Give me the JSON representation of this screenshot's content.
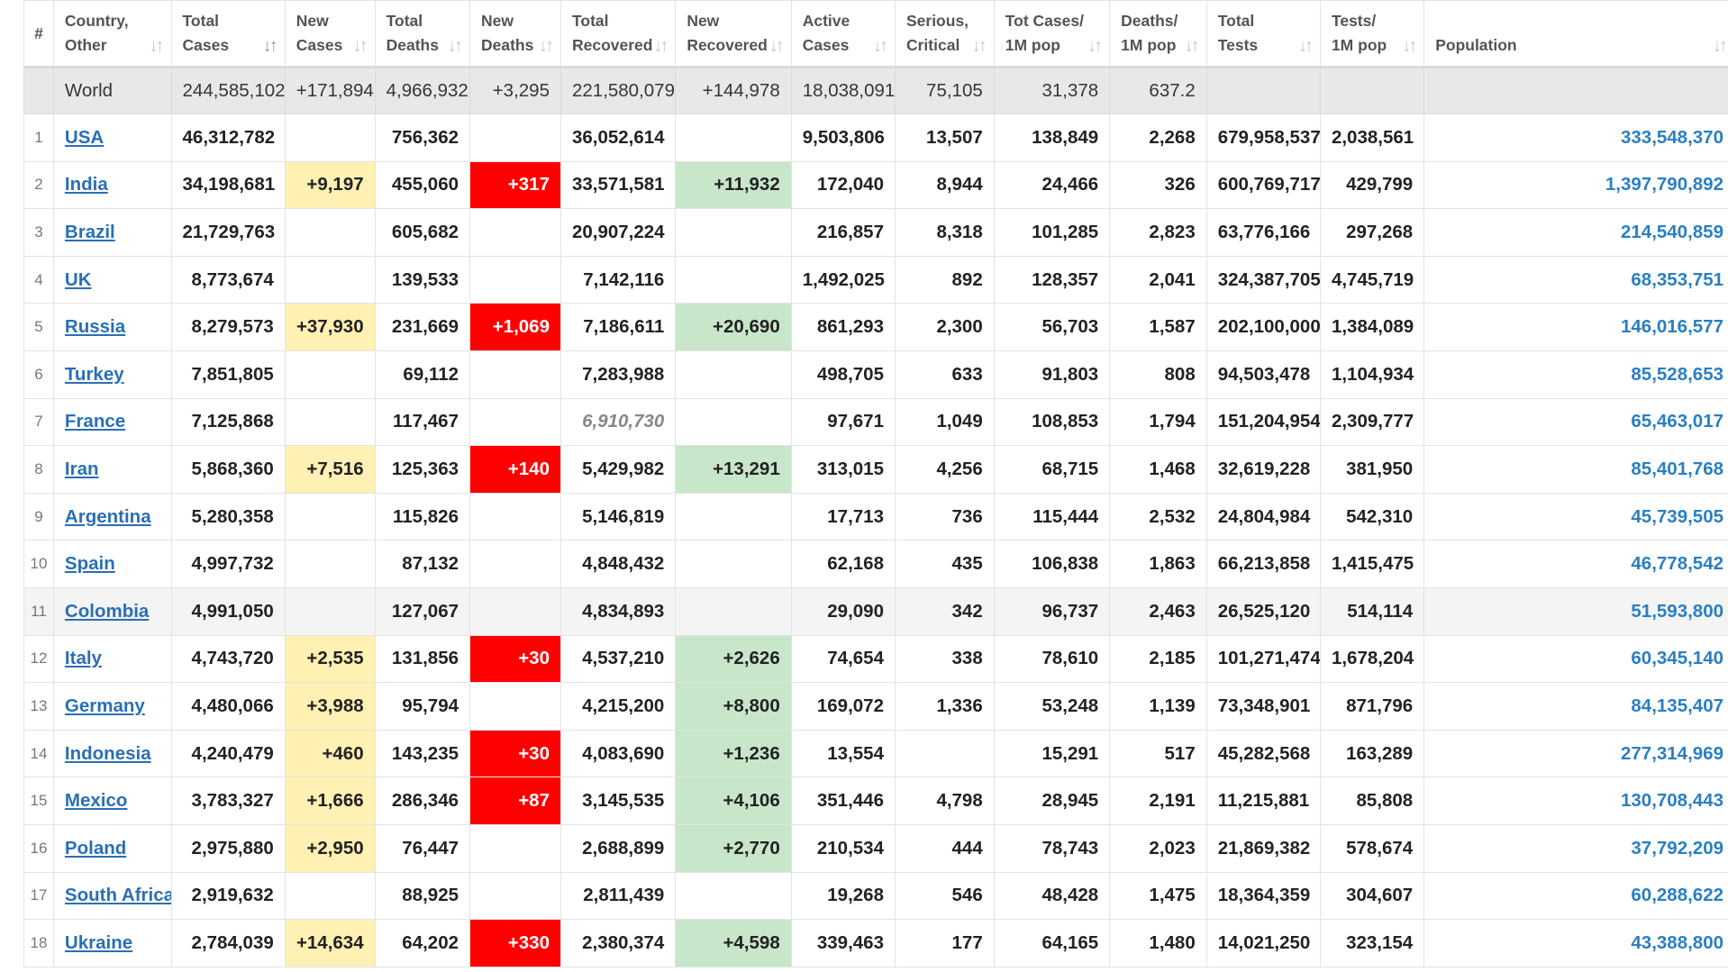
{
  "headers": [
    {
      "key": "num",
      "l1": "#",
      "l2": ""
    },
    {
      "key": "country",
      "l1": "Country,",
      "l2": "Other"
    },
    {
      "key": "total_cases",
      "l1": "Total",
      "l2": "Cases"
    },
    {
      "key": "new_cases",
      "l1": "New",
      "l2": "Cases"
    },
    {
      "key": "total_deaths",
      "l1": "Total",
      "l2": "Deaths"
    },
    {
      "key": "new_deaths",
      "l1": "New",
      "l2": "Deaths"
    },
    {
      "key": "total_recovered",
      "l1": "Total",
      "l2": "Recovered"
    },
    {
      "key": "new_recovered",
      "l1": "New",
      "l2": "Recovered"
    },
    {
      "key": "active",
      "l1": "Active",
      "l2": "Cases"
    },
    {
      "key": "serious",
      "l1": "Serious,",
      "l2": "Critical"
    },
    {
      "key": "cases_1m",
      "l1": "Tot Cases/",
      "l2": "1M pop"
    },
    {
      "key": "deaths_1m",
      "l1": "Deaths/",
      "l2": "1M pop"
    },
    {
      "key": "total_tests",
      "l1": "Total",
      "l2": "Tests"
    },
    {
      "key": "tests_1m",
      "l1": "Tests/",
      "l2": "1M pop"
    },
    {
      "key": "population",
      "l1": "",
      "l2": "Population"
    }
  ],
  "sort_icon": "sort-arrows-icon",
  "active_sort_column": "total_cases",
  "world": {
    "country": "World",
    "total_cases": "244,585,102",
    "new_cases": "+171,894",
    "total_deaths": "4,966,932",
    "new_deaths": "+3,295",
    "total_recovered": "221,580,079",
    "new_recovered": "+144,978",
    "active": "18,038,091",
    "serious": "75,105",
    "cases_1m": "31,378",
    "deaths_1m": "637.2",
    "total_tests": "",
    "tests_1m": "",
    "population": ""
  },
  "rows": [
    {
      "num": "1",
      "country": "USA",
      "total_cases": "46,312,782",
      "new_cases": "",
      "total_deaths": "756,362",
      "new_deaths": "",
      "total_recovered": "36,052,614",
      "new_recovered": "",
      "active": "9,503,806",
      "serious": "13,507",
      "cases_1m": "138,849",
      "deaths_1m": "2,268",
      "total_tests": "679,958,537",
      "tests_1m": "2,038,561",
      "population": "333,548,370"
    },
    {
      "num": "2",
      "country": "India",
      "total_cases": "34,198,681",
      "new_cases": "+9,197",
      "total_deaths": "455,060",
      "new_deaths": "+317",
      "total_recovered": "33,571,581",
      "new_recovered": "+11,932",
      "active": "172,040",
      "serious": "8,944",
      "cases_1m": "24,466",
      "deaths_1m": "326",
      "total_tests": "600,769,717",
      "tests_1m": "429,799",
      "population": "1,397,790,892"
    },
    {
      "num": "3",
      "country": "Brazil",
      "total_cases": "21,729,763",
      "new_cases": "",
      "total_deaths": "605,682",
      "new_deaths": "",
      "total_recovered": "20,907,224",
      "new_recovered": "",
      "active": "216,857",
      "serious": "8,318",
      "cases_1m": "101,285",
      "deaths_1m": "2,823",
      "total_tests": "63,776,166",
      "tests_1m": "297,268",
      "population": "214,540,859"
    },
    {
      "num": "4",
      "country": "UK",
      "total_cases": "8,773,674",
      "new_cases": "",
      "total_deaths": "139,533",
      "new_deaths": "",
      "total_recovered": "7,142,116",
      "new_recovered": "",
      "active": "1,492,025",
      "serious": "892",
      "cases_1m": "128,357",
      "deaths_1m": "2,041",
      "total_tests": "324,387,705",
      "tests_1m": "4,745,719",
      "population": "68,353,751"
    },
    {
      "num": "5",
      "country": "Russia",
      "total_cases": "8,279,573",
      "new_cases": "+37,930",
      "total_deaths": "231,669",
      "new_deaths": "+1,069",
      "total_recovered": "7,186,611",
      "new_recovered": "+20,690",
      "active": "861,293",
      "serious": "2,300",
      "cases_1m": "56,703",
      "deaths_1m": "1,587",
      "total_tests": "202,100,000",
      "tests_1m": "1,384,089",
      "population": "146,016,577"
    },
    {
      "num": "6",
      "country": "Turkey",
      "total_cases": "7,851,805",
      "new_cases": "",
      "total_deaths": "69,112",
      "new_deaths": "",
      "total_recovered": "7,283,988",
      "new_recovered": "",
      "active": "498,705",
      "serious": "633",
      "cases_1m": "91,803",
      "deaths_1m": "808",
      "total_tests": "94,503,478",
      "tests_1m": "1,104,934",
      "population": "85,528,653"
    },
    {
      "num": "7",
      "country": "France",
      "total_cases": "7,125,868",
      "new_cases": "",
      "total_deaths": "117,467",
      "new_deaths": "",
      "total_recovered": "6,910,730",
      "recovered_italic": true,
      "new_recovered": "",
      "active": "97,671",
      "serious": "1,049",
      "cases_1m": "108,853",
      "deaths_1m": "1,794",
      "total_tests": "151,204,954",
      "tests_1m": "2,309,777",
      "population": "65,463,017"
    },
    {
      "num": "8",
      "country": "Iran",
      "total_cases": "5,868,360",
      "new_cases": "+7,516",
      "total_deaths": "125,363",
      "new_deaths": "+140",
      "total_recovered": "5,429,982",
      "new_recovered": "+13,291",
      "active": "313,015",
      "serious": "4,256",
      "cases_1m": "68,715",
      "deaths_1m": "1,468",
      "total_tests": "32,619,228",
      "tests_1m": "381,950",
      "population": "85,401,768"
    },
    {
      "num": "9",
      "country": "Argentina",
      "total_cases": "5,280,358",
      "new_cases": "",
      "total_deaths": "115,826",
      "new_deaths": "",
      "total_recovered": "5,146,819",
      "new_recovered": "",
      "active": "17,713",
      "serious": "736",
      "cases_1m": "115,444",
      "deaths_1m": "2,532",
      "total_tests": "24,804,984",
      "tests_1m": "542,310",
      "population": "45,739,505"
    },
    {
      "num": "10",
      "country": "Spain",
      "total_cases": "4,997,732",
      "new_cases": "",
      "total_deaths": "87,132",
      "new_deaths": "",
      "total_recovered": "4,848,432",
      "new_recovered": "",
      "active": "62,168",
      "serious": "435",
      "cases_1m": "106,838",
      "deaths_1m": "1,863",
      "total_tests": "66,213,858",
      "tests_1m": "1,415,475",
      "population": "46,778,542"
    },
    {
      "num": "11",
      "country": "Colombia",
      "total_cases": "4,991,050",
      "new_cases": "",
      "total_deaths": "127,067",
      "new_deaths": "",
      "total_recovered": "4,834,893",
      "new_recovered": "",
      "active": "29,090",
      "serious": "342",
      "cases_1m": "96,737",
      "deaths_1m": "2,463",
      "total_tests": "26,525,120",
      "tests_1m": "514,114",
      "population": "51,593,800",
      "highlight": true
    },
    {
      "num": "12",
      "country": "Italy",
      "total_cases": "4,743,720",
      "new_cases": "+2,535",
      "total_deaths": "131,856",
      "new_deaths": "+30",
      "total_recovered": "4,537,210",
      "new_recovered": "+2,626",
      "active": "74,654",
      "serious": "338",
      "cases_1m": "78,610",
      "deaths_1m": "2,185",
      "total_tests": "101,271,474",
      "tests_1m": "1,678,204",
      "population": "60,345,140"
    },
    {
      "num": "13",
      "country": "Germany",
      "total_cases": "4,480,066",
      "new_cases": "+3,988",
      "total_deaths": "95,794",
      "new_deaths": "",
      "total_recovered": "4,215,200",
      "new_recovered": "+8,800",
      "active": "169,072",
      "serious": "1,336",
      "cases_1m": "53,248",
      "deaths_1m": "1,139",
      "total_tests": "73,348,901",
      "tests_1m": "871,796",
      "population": "84,135,407"
    },
    {
      "num": "14",
      "country": "Indonesia",
      "total_cases": "4,240,479",
      "new_cases": "+460",
      "total_deaths": "143,235",
      "new_deaths": "+30",
      "total_recovered": "4,083,690",
      "new_recovered": "+1,236",
      "active": "13,554",
      "serious": "",
      "cases_1m": "15,291",
      "deaths_1m": "517",
      "total_tests": "45,282,568",
      "tests_1m": "163,289",
      "population": "277,314,969"
    },
    {
      "num": "15",
      "country": "Mexico",
      "total_cases": "3,783,327",
      "new_cases": "+1,666",
      "total_deaths": "286,346",
      "new_deaths": "+87",
      "total_recovered": "3,145,535",
      "new_recovered": "+4,106",
      "active": "351,446",
      "serious": "4,798",
      "cases_1m": "28,945",
      "deaths_1m": "2,191",
      "total_tests": "11,215,881",
      "tests_1m": "85,808",
      "population": "130,708,443"
    },
    {
      "num": "16",
      "country": "Poland",
      "total_cases": "2,975,880",
      "new_cases": "+2,950",
      "total_deaths": "76,447",
      "new_deaths": "",
      "total_recovered": "2,688,899",
      "new_recovered": "+2,770",
      "active": "210,534",
      "serious": "444",
      "cases_1m": "78,743",
      "deaths_1m": "2,023",
      "total_tests": "21,869,382",
      "tests_1m": "578,674",
      "population": "37,792,209"
    },
    {
      "num": "17",
      "country": "South Africa",
      "total_cases": "2,919,632",
      "new_cases": "",
      "total_deaths": "88,925",
      "new_deaths": "",
      "total_recovered": "2,811,439",
      "new_recovered": "",
      "active": "19,268",
      "serious": "546",
      "cases_1m": "48,428",
      "deaths_1m": "1,475",
      "total_tests": "18,364,359",
      "tests_1m": "304,607",
      "population": "60,288,622"
    },
    {
      "num": "18",
      "country": "Ukraine",
      "total_cases": "2,784,039",
      "new_cases": "+14,634",
      "total_deaths": "64,202",
      "new_deaths": "+330",
      "total_recovered": "2,380,374",
      "new_recovered": "+4,598",
      "active": "339,463",
      "serious": "177",
      "cases_1m": "64,165",
      "deaths_1m": "1,480",
      "total_tests": "14,021,250",
      "tests_1m": "323,154",
      "population": "43,388,800"
    }
  ]
}
